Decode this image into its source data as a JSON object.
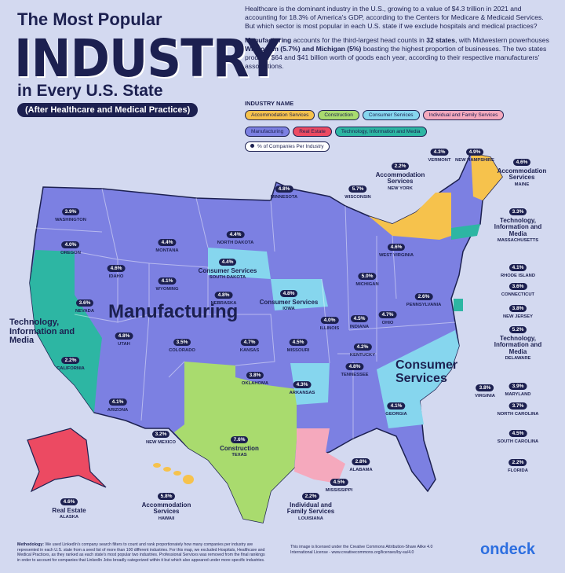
{
  "header": {
    "line1": "The Most Popular",
    "big": "INDUSTRY",
    "line3": "in Every U.S. State",
    "subtitle": "(After Healthcare and Medical Practices)"
  },
  "intro": [
    [
      {
        "text": "Healthcare is the dominant industry in the U.S., growing to a value of $4.3 trillion in 2021 and accounting for 18.3% of America's GDP, according to the Centers for Medicare & Medicaid Services. But which sector is most popular in each U.S. state if we exclude hospitals and medical practices?",
        "bold": false
      }
    ],
    [
      {
        "text": "Manufacturing",
        "bold": true
      },
      {
        "text": " accounts for the third-largest head counts in ",
        "bold": false
      },
      {
        "text": "32 states",
        "bold": true
      },
      {
        "text": ", with Midwestern powerhouses ",
        "bold": false
      },
      {
        "text": "Wisconsin (5.7%) and Michigan (5%)",
        "bold": true
      },
      {
        "text": " boasting the highest proportion of businesses. The two states produce $64 and $41 billion worth of goods each year, according to their respective manufacturers' associations.",
        "bold": false
      }
    ]
  ],
  "legend": {
    "title": "INDUSTRY NAME",
    "items": [
      {
        "name": "Accommodation Services",
        "color": "#f6c24c"
      },
      {
        "name": "Construction",
        "color": "#a9db6e"
      },
      {
        "name": "Consumer Services",
        "color": "#86d6ee"
      },
      {
        "name": "Individual and Family Services",
        "color": "#f5a9bd"
      },
      {
        "name": "Manufacturing",
        "color": "#7c80e2"
      },
      {
        "name": "Real Estate",
        "color": "#ec4a62"
      },
      {
        "name": "Technology, Information and Media",
        "color": "#2db6a3"
      }
    ],
    "note": "% of Companies Per Industry"
  },
  "map_labels": [
    "Manufacturing",
    "Consumer Services",
    "Technology, Information and Media"
  ],
  "states": [
    {
      "name": "WASHINGTON",
      "pct": "3.9%"
    },
    {
      "name": "OREGON",
      "pct": "4.0%"
    },
    {
      "name": "IDAHO",
      "pct": "4.6%"
    },
    {
      "name": "MONTANA",
      "pct": "4.4%"
    },
    {
      "name": "WYOMING",
      "pct": "4.1%"
    },
    {
      "name": "NEVADA",
      "pct": "3.6%"
    },
    {
      "name": "CALIFORNIA",
      "pct": "2.2%"
    },
    {
      "name": "UTAH",
      "pct": "4.8%"
    },
    {
      "name": "COLORADO",
      "pct": "3.5%"
    },
    {
      "name": "ARIZONA",
      "pct": "4.1%"
    },
    {
      "name": "NEW MEXICO",
      "pct": "3.2%"
    },
    {
      "name": "NORTH DAKOTA",
      "pct": "4.4%"
    },
    {
      "name": "SOUTH DAKOTA",
      "pct": "4.4%",
      "industry": "Consumer Services"
    },
    {
      "name": "NEBRASKA",
      "pct": "4.8%"
    },
    {
      "name": "KANSAS",
      "pct": "4.7%"
    },
    {
      "name": "OKLAHOMA",
      "pct": "3.8%"
    },
    {
      "name": "TEXAS",
      "pct": "7.6%",
      "industry": "Construction"
    },
    {
      "name": "MINNESOTA",
      "pct": "4.8%"
    },
    {
      "name": "IOWA",
      "pct": "4.8%",
      "industry": "Consumer Services"
    },
    {
      "name": "MISSOURI",
      "pct": "4.5%"
    },
    {
      "name": "ARKANSAS",
      "pct": "4.3%"
    },
    {
      "name": "LOUISIANA",
      "pct": "2.2%",
      "industry": "Individual and Family Services"
    },
    {
      "name": "WISCONSIN",
      "pct": "5.7%"
    },
    {
      "name": "MICHIGAN",
      "pct": "5.0%"
    },
    {
      "name": "ILLINOIS",
      "pct": "4.0%"
    },
    {
      "name": "INDIANA",
      "pct": "4.5%"
    },
    {
      "name": "OHIO",
      "pct": "4.7%"
    },
    {
      "name": "KENTUCKY",
      "pct": "4.2%"
    },
    {
      "name": "TENNESSEE",
      "pct": "4.8%"
    },
    {
      "name": "MISSISSIPPI",
      "pct": "4.5%"
    },
    {
      "name": "ALABAMA",
      "pct": "2.8%"
    },
    {
      "name": "GEORGIA",
      "pct": "4.1%"
    },
    {
      "name": "FLORIDA",
      "pct": "2.2%"
    },
    {
      "name": "SOUTH CAROLINA",
      "pct": "4.5%"
    },
    {
      "name": "NORTH CAROLINA",
      "pct": "3.7%"
    },
    {
      "name": "VIRGINIA",
      "pct": "3.8%"
    },
    {
      "name": "MARYLAND",
      "pct": "3.9%"
    },
    {
      "name": "DELAWARE",
      "pct": "5.2%",
      "industry": "Technology, Information and Media"
    },
    {
      "name": "NEW JERSEY",
      "pct": "3.8%"
    },
    {
      "name": "CONNECTICUT",
      "pct": "3.6%"
    },
    {
      "name": "RHODE ISLAND",
      "pct": "4.1%"
    },
    {
      "name": "MASSACHUSETTS",
      "pct": "3.3%",
      "industry": "Technology, Information and Media"
    },
    {
      "name": "MAINE",
      "pct": "4.6%",
      "industry": "Accommodation Services"
    },
    {
      "name": "NEW HAMPSHIRE",
      "pct": "4.9%"
    },
    {
      "name": "VERMONT",
      "pct": "4.3%"
    },
    {
      "name": "NEW YORK",
      "pct": "2.2%",
      "industry": "Accommodation Services"
    },
    {
      "name": "PENNSYLVANIA",
      "pct": "2.6%"
    },
    {
      "name": "WEST VIRGINIA",
      "pct": "4.6%"
    },
    {
      "name": "ALASKA",
      "pct": "4.6%",
      "industry": "Real Estate"
    },
    {
      "name": "HAWAII",
      "pct": "5.8%",
      "industry": "Accommodation Services"
    }
  ],
  "footer": {
    "methodology_label": "Methodology:",
    "methodology": "We used LinkedIn's company search filters to count and rank proportionately how many companies per industry are represented in each U.S. state from a seed list of more than 100 different industries. For this map, we excluded Hospitals, Healthcare and Medical Practices, as they ranked as each state's most popular two industries. Professional Services was removed from the final rankings in order to account for companies that LinkedIn Jobs broadly categorized within it but which also appeared under more specific industries.",
    "license": "This image is licensed under the Creative Commons Attribution-Share Alike 4.0 International License - www.creativecommons.org/licenses/by-sa/4.0",
    "logo": "ondeck"
  }
}
